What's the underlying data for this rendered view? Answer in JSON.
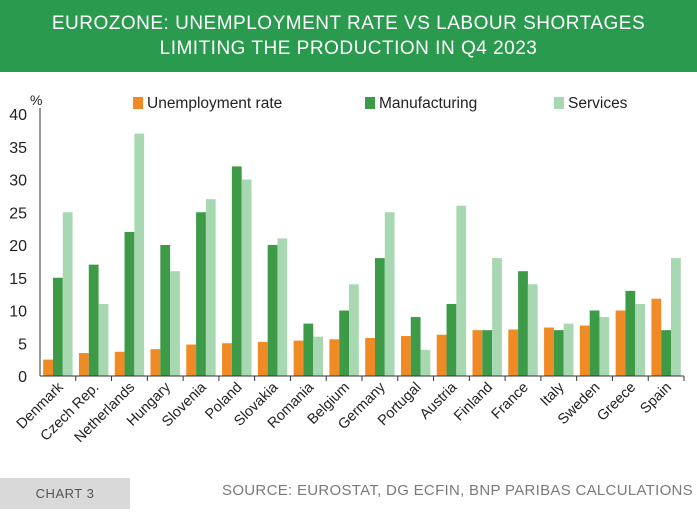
{
  "header": {
    "title_line1": "EUROZONE: UNEMPLOYMENT RATE VS LABOUR SHORTAGES",
    "title_line2": "LIMITING THE PRODUCTION IN Q4 2023"
  },
  "footer": {
    "chart_tag": "CHART 3",
    "source": "SOURCE: EUROSTAT, DG ECFIN, BNP PARIBAS CALCULATIONS"
  },
  "colors": {
    "header_bg": "#2a9a4e",
    "unemployment": "#f08a24",
    "manufacturing": "#3d9b48",
    "services": "#a8d8b2"
  },
  "chart_data": {
    "type": "bar",
    "title": "EUROZONE: UNEMPLOYMENT RATE VS LABOUR SHORTAGES LIMITING THE PRODUCTION IN Q4 2023",
    "ylabel": "%",
    "xlabel": "",
    "ylim": [
      0,
      40
    ],
    "yticks": [
      0,
      5,
      10,
      15,
      20,
      25,
      30,
      35,
      40
    ],
    "grid": false,
    "legend_position": "top",
    "categories": [
      "Denmark",
      "Czech Rep.",
      "Netherlands",
      "Hungary",
      "Slovenia",
      "Poland",
      "Slovakia",
      "Romania",
      "Belgium",
      "Germany",
      "Portugal",
      "Austria",
      "Finland",
      "France",
      "Italy",
      "Sweden",
      "Greece",
      "Spain"
    ],
    "series": [
      {
        "name": "Unemployment rate",
        "color": "#f08a24",
        "values": [
          2.5,
          3.5,
          3.7,
          4.1,
          4.8,
          5.0,
          5.2,
          5.4,
          5.6,
          5.8,
          6.1,
          6.3,
          7.0,
          7.1,
          7.4,
          7.7,
          10.0,
          11.8
        ]
      },
      {
        "name": "Manufacturing",
        "color": "#3d9b48",
        "values": [
          15,
          17,
          22,
          20,
          25,
          32,
          20,
          8,
          10,
          18,
          9,
          11,
          7,
          16,
          7,
          10,
          13,
          7
        ]
      },
      {
        "name": "Services",
        "color": "#a8d8b2",
        "values": [
          25,
          11,
          37,
          16,
          27,
          30,
          21,
          6,
          14,
          25,
          4,
          26,
          18,
          14,
          8,
          9,
          11,
          18
        ]
      }
    ]
  }
}
